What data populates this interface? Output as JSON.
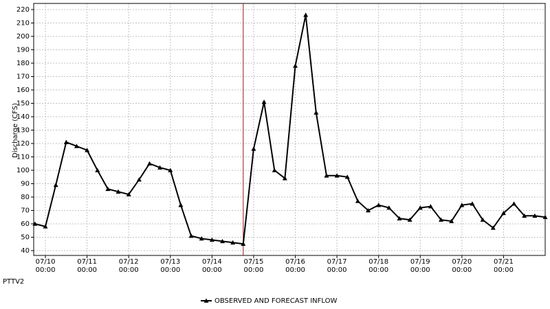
{
  "chart_data": {
    "type": "line",
    "y_label": "Discharge (CFS)",
    "station": "PTTV2",
    "x": [
      "07/09 18:00",
      "07/10 00:00",
      "07/10 06:00",
      "07/10 12:00",
      "07/10 18:00",
      "07/11 00:00",
      "07/11 06:00",
      "07/11 12:00",
      "07/11 18:00",
      "07/12 00:00",
      "07/12 06:00",
      "07/12 12:00",
      "07/12 18:00",
      "07/13 00:00",
      "07/13 06:00",
      "07/13 12:00",
      "07/13 18:00",
      "07/14 00:00",
      "07/14 06:00",
      "07/14 12:00",
      "07/14 18:00",
      "07/15 00:00",
      "07/15 06:00",
      "07/15 12:00",
      "07/15 18:00",
      "07/16 00:00",
      "07/16 06:00",
      "07/16 12:00",
      "07/16 18:00",
      "07/17 00:00",
      "07/17 06:00",
      "07/17 12:00",
      "07/17 18:00",
      "07/18 00:00",
      "07/18 06:00",
      "07/18 12:00",
      "07/18 18:00",
      "07/19 00:00",
      "07/19 06:00",
      "07/19 12:00",
      "07/19 18:00",
      "07/20 00:00",
      "07/20 06:00",
      "07/20 12:00",
      "07/20 18:00",
      "07/21 00:00",
      "07/21 06:00",
      "07/21 12:00",
      "07/21 18:00",
      "07/22 00:00"
    ],
    "series": [
      {
        "name": "OBSERVED AND FORECAST INFLOW",
        "color": "#000000",
        "values": [
          60,
          58,
          89,
          121,
          118,
          115,
          100,
          86,
          84,
          82,
          93,
          105,
          102,
          100,
          74,
          51,
          49,
          48,
          47,
          46,
          45,
          116,
          151,
          100,
          94,
          178,
          216,
          143,
          96,
          96,
          95,
          77,
          70,
          74,
          72,
          64,
          63,
          72,
          73,
          63,
          62,
          74,
          75,
          63,
          57,
          68,
          75,
          66,
          66,
          65
        ]
      }
    ],
    "xlim": [
      "07/09 17:15",
      "07/22 00:00"
    ],
    "xticks": [
      "07/10 00:00",
      "07/11 00:00",
      "07/12 00:00",
      "07/13 00:00",
      "07/14 00:00",
      "07/15 00:00",
      "07/16 00:00",
      "07/17 00:00",
      "07/18 00:00",
      "07/19 00:00",
      "07/20 00:00",
      "07/21 00:00"
    ],
    "ylim": [
      36.4,
      224.6
    ],
    "yticks": [
      40,
      50,
      60,
      70,
      80,
      90,
      100,
      110,
      120,
      130,
      140,
      150,
      160,
      170,
      180,
      190,
      200,
      210,
      220
    ],
    "grid": true,
    "forecast_line": {
      "x": "07/14 18:00",
      "color": "#cc0000"
    },
    "legend": "bottom"
  }
}
